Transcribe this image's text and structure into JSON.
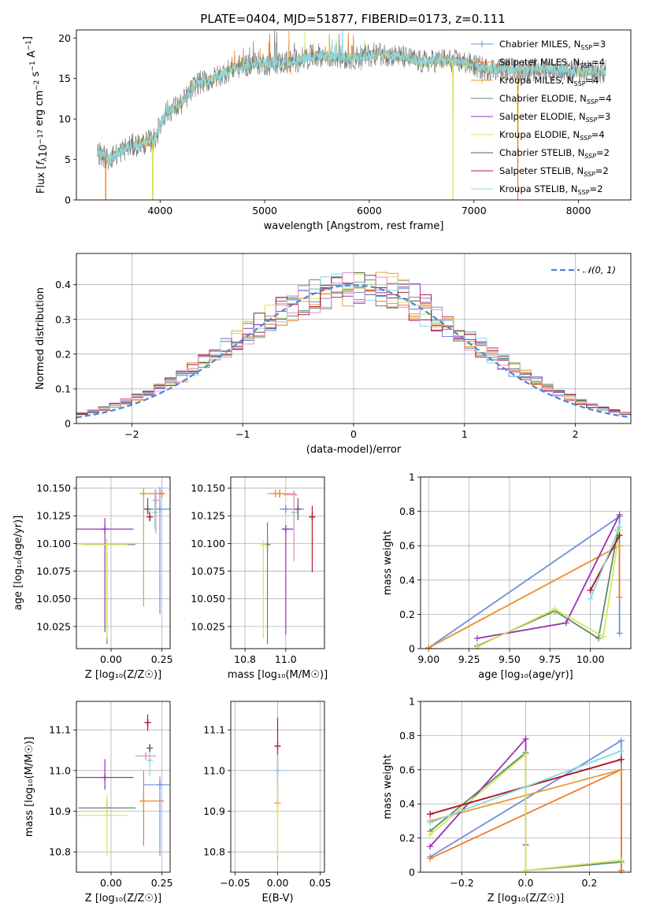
{
  "figure": {
    "title": "PLATE=0404, MJD=51877, FIBERID=0173, z=0.111"
  },
  "chart_data": [
    {
      "id": "spectrum",
      "type": "line",
      "xlabel": "wavelength [Angstrom, rest frame]",
      "ylabel_parts": [
        "Flux [",
        "f",
        "λ",
        "10",
        "−17",
        " erg cm",
        "−2",
        " s",
        "−1",
        " A",
        "−1",
        "]"
      ],
      "xlim": [
        3200,
        8500
      ],
      "ylim": [
        0,
        21
      ],
      "xticks": [
        4000,
        5000,
        6000,
        7000,
        8000
      ],
      "yticks": [
        0,
        5,
        10,
        15,
        20
      ],
      "grid": false,
      "legend_position": "right",
      "legend": [
        {
          "name": "Chabrier MILES",
          "nssp": "3",
          "label_style": "N_SSP",
          "color": "#6f8fd8"
        },
        {
          "name": "Salpeter MILES",
          "nssp": "4",
          "label_style": "N_SSP",
          "color": "#ef7b2b"
        },
        {
          "name": "Kroupa MILES",
          "nssp": "4",
          "label_style": "N_SSP",
          "color": "#e89a3a"
        },
        {
          "name": "Chabrier ELODIE",
          "nssp": "4",
          "label_style": "N_SSP_italic",
          "color": "#5c8a68"
        },
        {
          "name": "Salpeter ELODIE",
          "nssp": "3",
          "label_style": "N_SSP_italic",
          "color": "#9a30b8"
        },
        {
          "name": "Kroupa ELODIE",
          "nssp": "4",
          "label_style": "N_SSP_italic",
          "color": "#d4e85a"
        },
        {
          "name": "Chabrier STELIB",
          "nssp": "2",
          "label_style": "N_SSP_italic",
          "color": "#5a5a5a"
        },
        {
          "name": "Salpeter STELIB",
          "nssp": "2",
          "label_style": "N_SSP_italic",
          "color": "#b2182b"
        },
        {
          "name": "Kroupa STELIB",
          "nssp": "2",
          "label_style": "N_SSP",
          "color": "#8fd6e0"
        }
      ],
      "continuum": {
        "x": [
          3400,
          3500,
          3700,
          3850,
          3950,
          4050,
          4200,
          4350,
          4500,
          4700,
          4900,
          5100,
          5300,
          5500,
          5700,
          5900,
          6100,
          6300,
          6500,
          6700,
          6900,
          7100,
          7300,
          7500,
          7700,
          7900,
          8100,
          8250
        ],
        "y": [
          6.0,
          5.0,
          6.6,
          7.0,
          7.5,
          10.8,
          11.8,
          14.4,
          14.9,
          16.3,
          16.9,
          16.8,
          17.2,
          17.9,
          17.6,
          17.6,
          18.1,
          17.7,
          17.0,
          17.3,
          17.0,
          16.2,
          16.2,
          16.0,
          16.2,
          15.9,
          15.8,
          15.8
        ]
      },
      "dropouts_x": [
        3480,
        3930,
        6800,
        7420
      ]
    },
    {
      "id": "residual-histogram",
      "type": "histogram",
      "xlabel": "(data-model)/error",
      "ylabel": "Normed distribution",
      "xlim": [
        -2.5,
        2.5
      ],
      "ylim": [
        0,
        0.49
      ],
      "xticks": [
        -2,
        -1,
        0,
        1,
        2
      ],
      "yticks": [
        0.0,
        0.1,
        0.2,
        0.3,
        0.4
      ],
      "grid": true,
      "legend_position": "upper right",
      "legend": [
        {
          "name": "𝒩(0, 1)",
          "color": "#4a86d8",
          "style": "dashed"
        }
      ],
      "bin_width": 0.1,
      "series_colors": [
        "#6f8fd8",
        "#ef7b2b",
        "#e89a3a",
        "#5c8a68",
        "#9a30b8",
        "#d4e85a",
        "#5a5a5a",
        "#b2182b",
        "#8fd6e0",
        "#e890c0"
      ]
    },
    {
      "id": "age-vs-Z",
      "type": "errorbar",
      "xlabel": "Z [log₁₀(Z/Z☉)]",
      "ylabel": "age  [log₁₀(age/yr)]",
      "xlim": [
        -0.17,
        0.29
      ],
      "ylim": [
        10.005,
        10.16
      ],
      "xticks": [
        -0.0,
        0.25
      ],
      "xtick_labels": [
        "0.00",
        "0.25"
      ],
      "yticks": [
        10.025,
        10.05,
        10.075,
        10.1,
        10.125,
        10.15
      ],
      "ytick_labels": [
        "10.025",
        "10.050",
        "10.075",
        "10.100",
        "10.125",
        "10.150"
      ],
      "grid": true,
      "points": [
        {
          "x": 0.24,
          "xerr": [
            0.08,
            0.05
          ],
          "y": 10.131,
          "yerr": [
            0.095,
            0.02
          ],
          "color": "#6f8fd8"
        },
        {
          "x": 0.25,
          "xerr": [
            0.1,
            0.0
          ],
          "y": 10.145,
          "yerr": [
            0.0,
            0.0
          ],
          "color": "#ef7b2b"
        },
        {
          "x": 0.16,
          "xerr": [
            0.02,
            0.03
          ],
          "y": 10.145,
          "yerr": [
            0.102,
            0.005
          ],
          "color": "#e89a3a"
        },
        {
          "x": -0.02,
          "xerr": [
            0.12,
            0.14
          ],
          "y": 10.099,
          "yerr": [
            0.09,
            0.005
          ],
          "color": "#5c8a68"
        },
        {
          "x": -0.03,
          "xerr": [
            0.15,
            0.14
          ],
          "y": 10.113,
          "yerr": [
            0.093,
            0.01
          ],
          "color": "#9a30b8"
        },
        {
          "x": -0.02,
          "xerr": [
            0.15,
            0.1
          ],
          "y": 10.099,
          "yerr": [
            0.085,
            0.005
          ],
          "color": "#d4e85a"
        },
        {
          "x": 0.18,
          "xerr": [
            0.0,
            0.0
          ],
          "y": 10.131,
          "yerr": [
            0.005,
            0.01
          ],
          "color": "#5a5a5a"
        },
        {
          "x": 0.19,
          "xerr": [
            0.0,
            0.0
          ],
          "y": 10.124,
          "yerr": [
            0.004,
            0.005
          ],
          "color": "#b2182b"
        },
        {
          "x": 0.215,
          "xerr": [
            0.0,
            0.0
          ],
          "y": 10.128,
          "yerr": [
            0.015,
            0.02
          ],
          "color": "#8fd6e0"
        },
        {
          "x": 0.22,
          "xerr": [
            0.0,
            0.0
          ],
          "y": 10.139,
          "yerr": [
            0.03,
            0.01
          ],
          "color": "#e890c0"
        }
      ]
    },
    {
      "id": "age-vs-mass",
      "type": "errorbar",
      "xlabel": "mass [log₁₀(M/M☉)]",
      "ylabel": "",
      "xlim": [
        10.73,
        11.19
      ],
      "ylim": [
        10.005,
        10.16
      ],
      "xticks": [
        10.8,
        11.0
      ],
      "xtick_labels": [
        "10.8",
        "11.0"
      ],
      "yticks": [
        10.025,
        10.05,
        10.075,
        10.1,
        10.125,
        10.15
      ],
      "ytick_labels": [
        "10.025",
        "10.050",
        "10.075",
        "10.100",
        "10.125",
        "10.150"
      ],
      "grid": true,
      "points": [
        {
          "x": 11.0,
          "xerr": [
            0.03,
            0.09
          ],
          "y": 10.131,
          "yerr": [
            0.0,
            0.0
          ],
          "color": "#6f8fd8"
        },
        {
          "x": 10.97,
          "xerr": [
            0.04,
            0.05
          ],
          "y": 10.145,
          "yerr": [
            0.0,
            0.0
          ],
          "color": "#ef7b2b"
        },
        {
          "x": 10.95,
          "xerr": [
            0.04,
            0.1
          ],
          "y": 10.145,
          "yerr": [
            0.0,
            0.0
          ],
          "color": "#e89a3a"
        },
        {
          "x": 10.91,
          "xerr": [
            0.0,
            0.0
          ],
          "y": 10.099,
          "yerr": [
            0.09,
            0.02
          ],
          "color": "#5c8a68"
        },
        {
          "x": 11.0,
          "xerr": [
            0.02,
            0.04
          ],
          "y": 10.113,
          "yerr": [
            0.095,
            0.0
          ],
          "color": "#9a30b8"
        },
        {
          "x": 10.89,
          "xerr": [
            0.0,
            0.0
          ],
          "y": 10.099,
          "yerr": [
            0.085,
            0.0
          ],
          "color": "#d4e85a"
        },
        {
          "x": 11.06,
          "xerr": [
            0.0,
            0.0
          ],
          "y": 10.131,
          "yerr": [
            0.01,
            0.01
          ],
          "color": "#5a5a5a"
        },
        {
          "x": 11.13,
          "xerr": [
            0.01,
            0.01
          ],
          "y": 10.124,
          "yerr": [
            0.05,
            0.01
          ],
          "color": "#b2182b"
        },
        {
          "x": 11.04,
          "xerr": [
            0.0,
            0.0
          ],
          "y": 10.128,
          "yerr": [
            0.03,
            0.02
          ],
          "color": "#8fd6e0"
        },
        {
          "x": 11.04,
          "xerr": [
            0.05,
            0.02
          ],
          "y": 10.144,
          "yerr": [
            0.06,
            0.0
          ],
          "color": "#e890c0"
        }
      ]
    },
    {
      "id": "mass-weight-vs-age",
      "type": "line",
      "xlabel": "age  [log₁₀(age/yr)]",
      "ylabel": "mass weight",
      "xlim": [
        8.95,
        10.25
      ],
      "ylim": [
        0.0,
        1.0
      ],
      "xticks": [
        9.0,
        9.5,
        10.0
      ],
      "xtick_labels": [
        "9.00",
        "9.25",
        "9.50",
        "9.75",
        "10.00"
      ],
      "xticks_all": [
        9.0,
        9.25,
        9.5,
        9.75,
        10.0
      ],
      "yticks": [
        0.0,
        0.2,
        0.4,
        0.6,
        0.8,
        1.0
      ],
      "grid": true,
      "series": [
        {
          "color": "#6f8fd8",
          "x": [
            9.0,
            10.18,
            10.18
          ],
          "y": [
            0.005,
            0.77,
            0.09
          ]
        },
        {
          "color": "#ef7b2b",
          "x": [
            9.0,
            10.18,
            10.18
          ],
          "y": [
            0.005,
            0.6,
            0.3
          ]
        },
        {
          "color": "#e89a3a",
          "x": [
            9.0,
            10.18
          ],
          "y": [
            0.005,
            0.6
          ]
        },
        {
          "color": "#5c8a68",
          "x": [
            9.3,
            9.78,
            10.05,
            10.17
          ],
          "y": [
            0.015,
            0.22,
            0.06,
            0.69
          ]
        },
        {
          "color": "#9a30b8",
          "x": [
            9.3,
            9.85,
            10.18
          ],
          "y": [
            0.06,
            0.15,
            0.78
          ]
        },
        {
          "color": "#d4e85a",
          "x": [
            9.3,
            9.78,
            10.08,
            10.18
          ],
          "y": [
            0.01,
            0.23,
            0.07,
            0.69
          ]
        },
        {
          "color": "#5a5a5a",
          "x": [
            10.0,
            10.18
          ],
          "y": [
            0.34,
            0.66
          ]
        },
        {
          "color": "#b2182b",
          "x": [
            10.0,
            10.18
          ],
          "y": [
            0.34,
            0.66
          ]
        },
        {
          "color": "#8fd6e0",
          "x": [
            10.0,
            10.18
          ],
          "y": [
            0.29,
            0.71
          ]
        }
      ]
    },
    {
      "id": "mass-vs-Z",
      "type": "errorbar",
      "xlabel": "Z [log₁₀(Z/Z☉)]",
      "ylabel": "mass [log₁₀(M/M☉)]",
      "xlim": [
        -0.17,
        0.29
      ],
      "ylim": [
        10.75,
        11.17
      ],
      "xticks": [
        0.0,
        0.25
      ],
      "xtick_labels": [
        "0.00",
        "0.25"
      ],
      "yticks": [
        10.8,
        10.9,
        11.0,
        11.1
      ],
      "ytick_labels": [
        "10.8",
        "10.9",
        "11.0",
        "11.1"
      ],
      "grid": true,
      "points": [
        {
          "x": 0.24,
          "xerr": [
            0.08,
            0.05
          ],
          "y": 10.965,
          "yerr": [
            0.175,
            0.02
          ],
          "color": "#6f8fd8"
        },
        {
          "x": 0.16,
          "xerr": [
            0.02,
            0.1
          ],
          "y": 10.925,
          "yerr": [
            0.11,
            0.075
          ],
          "color": "#ef7b2b"
        },
        {
          "x": 0.16,
          "xerr": [
            0.0,
            0.0
          ],
          "y": 10.925,
          "yerr": [
            0.0,
            0.0
          ],
          "color": "#e89a3a"
        },
        {
          "x": -0.02,
          "xerr": [
            0.14,
            0.14
          ],
          "y": 10.908,
          "yerr": [
            0.02,
            0.02
          ],
          "color": "#5c8a68"
        },
        {
          "x": -0.03,
          "xerr": [
            0.15,
            0.14
          ],
          "y": 10.983,
          "yerr": [
            0.03,
            0.045
          ],
          "color": "#9a30b8"
        },
        {
          "x": -0.02,
          "xerr": [
            0.15,
            0.1
          ],
          "y": 10.89,
          "yerr": [
            0.1,
            0.05
          ],
          "color": "#d4e85a"
        },
        {
          "x": 0.19,
          "xerr": [
            0.01,
            0.01
          ],
          "y": 11.055,
          "yerr": [
            0.01,
            0.01
          ],
          "color": "#5a5a5a"
        },
        {
          "x": 0.18,
          "xerr": [
            0.01,
            0.01
          ],
          "y": 11.118,
          "yerr": [
            0.02,
            0.02
          ],
          "color": "#b2182b"
        },
        {
          "x": 0.19,
          "xerr": [
            0.01,
            0.01
          ],
          "y": 11.025,
          "yerr": [
            0.04,
            0.02
          ],
          "color": "#8fd6e0"
        },
        {
          "x": 0.17,
          "xerr": [
            0.05,
            0.05
          ],
          "y": 11.036,
          "yerr": [
            0.0,
            0.0
          ],
          "color": "#e890c0"
        }
      ]
    },
    {
      "id": "mass-vs-ebv",
      "type": "errorbar",
      "xlabel": "E(B-V)",
      "ylabel": "",
      "xlim": [
        -0.055,
        0.055
      ],
      "ylim": [
        10.75,
        11.17
      ],
      "xticks": [
        -0.05,
        0.0,
        0.05
      ],
      "xtick_labels": [
        "−0.05",
        "0.00",
        "0.05"
      ],
      "yticks": [
        10.8,
        10.9,
        11.0,
        11.1
      ],
      "ytick_labels": [
        "10.8",
        "10.9",
        "11.0",
        "11.1"
      ],
      "grid": true,
      "points": [
        {
          "x": 0.0,
          "xerr": [
            0.0,
            0.0
          ],
          "y": 11.06,
          "yerr": [
            0.07,
            0.07
          ],
          "color": "#b2182b"
        },
        {
          "x": 0.0,
          "xerr": [
            0.0,
            0.0
          ],
          "y": 11.0,
          "yerr": [
            0.08,
            0.07
          ],
          "color": "#9a30b8"
        },
        {
          "x": 0.0,
          "xerr": [
            0.0,
            0.0
          ],
          "y": 10.92,
          "yerr": [
            0.14,
            0.05
          ],
          "color": "#e89a3a"
        },
        {
          "x": 0.0,
          "xerr": [
            0.0,
            0.0
          ],
          "y": 10.9,
          "yerr": [
            0.11,
            0.08
          ],
          "color": "#d4e85a"
        },
        {
          "x": 0.0,
          "xerr": [
            0.0,
            0.0
          ],
          "y": 11.0,
          "yerr": [
            0.04,
            0.04
          ],
          "color": "#8fd6e0"
        }
      ]
    },
    {
      "id": "mass-weight-vs-Z",
      "type": "line",
      "xlabel": "Z [log₁₀(Z/Z☉)]",
      "ylabel": "mass weight",
      "xlim": [
        -0.33,
        0.33
      ],
      "ylim": [
        0.0,
        1.0
      ],
      "xticks": [
        -0.2,
        0.0,
        0.2
      ],
      "xtick_labels": [
        "−0.2",
        "0.0",
        "0.2"
      ],
      "yticks": [
        0.0,
        0.2,
        0.4,
        0.6,
        0.8,
        1.0
      ],
      "grid": true,
      "series": [
        {
          "color": "#6f8fd8",
          "x": [
            -0.3,
            0.3,
            0.3
          ],
          "y": [
            0.09,
            0.77,
            0.01
          ]
        },
        {
          "color": "#ef7b2b",
          "x": [
            -0.3,
            0.3,
            0.3
          ],
          "y": [
            0.08,
            0.6,
            0.01
          ]
        },
        {
          "color": "#e89a3a",
          "x": [
            -0.3,
            0.3
          ],
          "y": [
            0.3,
            0.6
          ]
        },
        {
          "color": "#5c8a68",
          "x": [
            -0.3,
            0.0,
            0.0,
            0.3
          ],
          "y": [
            0.24,
            0.7,
            0.01,
            0.06
          ]
        },
        {
          "color": "#9a30b8",
          "x": [
            -0.3,
            0.0,
            0.0
          ],
          "y": [
            0.15,
            0.78,
            0.16
          ]
        },
        {
          "color": "#d4e85a",
          "x": [
            -0.3,
            0.0,
            0.0,
            0.3
          ],
          "y": [
            0.22,
            0.69,
            0.01,
            0.07
          ]
        },
        {
          "color": "#5a5a5a",
          "x": [
            -0.3,
            0.3
          ],
          "y": [
            0.34,
            0.66
          ]
        },
        {
          "color": "#b2182b",
          "x": [
            -0.3,
            0.3
          ],
          "y": [
            0.34,
            0.66
          ]
        },
        {
          "color": "#8fd6e0",
          "x": [
            -0.3,
            0.3
          ],
          "y": [
            0.29,
            0.71
          ]
        }
      ]
    }
  ]
}
